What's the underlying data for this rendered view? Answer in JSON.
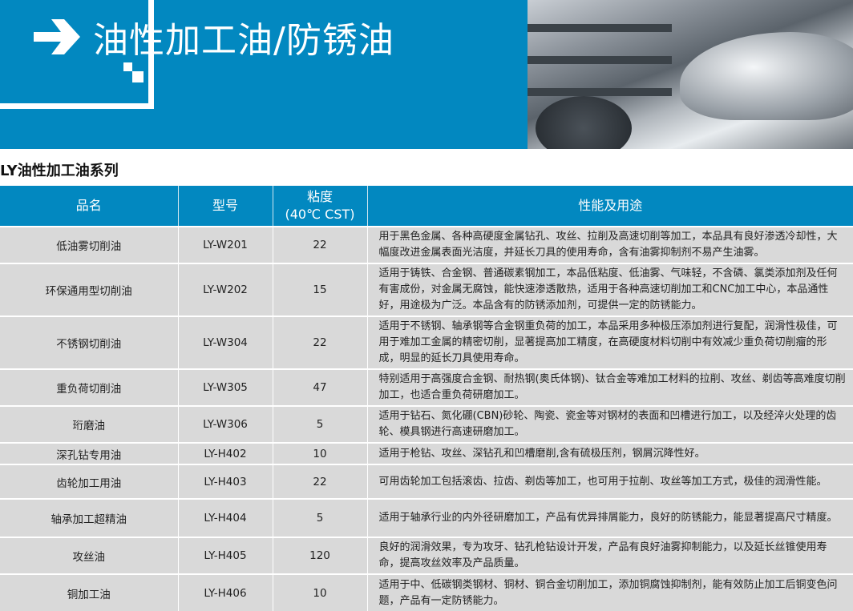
{
  "header": {
    "title": "油性加工油/防锈油",
    "arrow_icon": "arrow-right-icon",
    "brand_color": "#0288c0"
  },
  "section_title": "LY油性加工油系列",
  "table": {
    "columns": [
      "品名",
      "型号",
      "粘度",
      "(40℃ CST)",
      "性能及用途"
    ],
    "rows": [
      {
        "name": "低油雾切削油",
        "model": "LY-W201",
        "viscosity": "22",
        "desc": "用于黑色金属、各种高硬度金属钻孔、攻丝、拉削及高速切削等加工，本品具有良好渗透冷却性，大幅度改进金属表面光洁度，并延长刀具的使用寿命，含有油雾抑制剂不易产生油雾。"
      },
      {
        "name": "环保通用型切削油",
        "model": "LY-W202",
        "viscosity": "15",
        "desc": "适用于铸铁、合金钢、普通碳素钢加工，本品低粘度、低油雾、气味轻，不含磷、氯类添加剂及任何有害成份，对金属无腐蚀，能快速渗透散热，适用于各种高速切削加工和CNC加工中心，本品通性好，用途极为广泛。本品含有的防锈添加剂，可提供一定的防锈能力。"
      },
      {
        "name": "不锈钢切削油",
        "model": "LY-W304",
        "viscosity": "22",
        "desc": "适用于不锈钢、轴承钢等合金钢重负荷的加工，本品采用多种极压添加剂进行复配，润滑性极佳，可用于难加工金属的精密切削，显著提高加工精度，在高硬度材料切削中有效减少重负荷切削瘤的形成，明显的延长刀具使用寿命。"
      },
      {
        "name": "重负荷切削油",
        "model": "LY-W305",
        "viscosity": "47",
        "desc": "特别适用于高强度合金钢、耐热钢(奥氏体钢)、钛合金等难加工材料的拉削、攻丝、剃齿等高难度切削加工，也适合重负荷研磨加工。"
      },
      {
        "name": "珩磨油",
        "model": "LY-W306",
        "viscosity": "5",
        "desc": "适用于钻石、氮化硼(CBN)砂轮、陶瓷、瓷金等对钢材的表面和凹槽进行加工，以及经淬火处理的齿轮、模具钢进行高速研磨加工。"
      },
      {
        "name": "深孔钻专用油",
        "model": "LY-H402",
        "viscosity": "10",
        "desc": "适用于枪钻、攻丝、深钻孔和凹槽磨削,含有硫极压剂，钢屑沉降性好。"
      },
      {
        "name": "齿轮加工用油",
        "model": "LY-H403",
        "viscosity": "22",
        "desc": "可用齿轮加工包括滚齿、拉齿、剃齿等加工，也可用于拉削、攻丝等加工方式，极佳的润滑性能。"
      },
      {
        "name": "轴承加工超精油",
        "model": "LY-H404",
        "viscosity": "5",
        "desc": "适用于轴承行业的内外径研磨加工，产品有优异排屑能力，良好的防锈能力，能显著提高尺寸精度。"
      },
      {
        "name": "攻丝油",
        "model": "LY-H405",
        "viscosity": "120",
        "desc": "良好的润滑效果，专为攻牙、钻孔枪钻设计开发，产品有良好油雾抑制能力，以及延长丝锥使用寿命，提高攻丝效率及产品质量。"
      },
      {
        "name": "铜加工油",
        "model": "LY-H406",
        "viscosity": "10",
        "desc": "适用于中、低碳钢类钢材、铜材、铜合金切削加工，添加铜腐蚀抑制剂，能有效防止加工后铜变色问题，产品有一定防锈能力。"
      }
    ]
  }
}
